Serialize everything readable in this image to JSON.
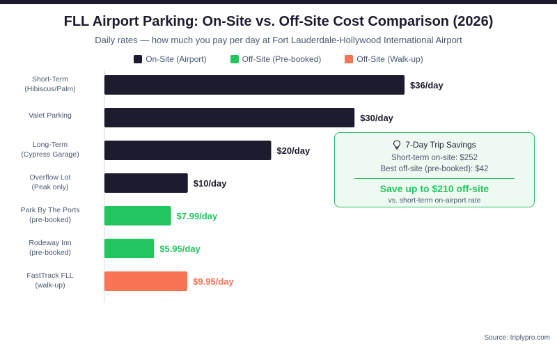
{
  "chart_data": {
    "type": "bar",
    "orientation": "horizontal",
    "title": "FLL Airport Parking: On-Site vs. Off-Site Cost Comparison (2026)",
    "subtitle": "Daily rates — how much you pay per day at Fort Lauderdale-Hollywood International Airport",
    "legend": [
      {
        "name": "On-Site (Airport)",
        "color": "#1c1c2e"
      },
      {
        "name": "Off-Site (Pre-booked)",
        "color": "#22c55e"
      },
      {
        "name": "Off-Site (Walk-up)",
        "color": "#f97355"
      }
    ],
    "xlim": [
      0,
      38
    ],
    "bars": [
      {
        "label": [
          "Short-Term",
          "(Hibiscus/Palm)"
        ],
        "value": 36,
        "value_label": "$36/day",
        "series": 0
      },
      {
        "label": [
          "Valet Parking"
        ],
        "value": 30,
        "value_label": "$30/day",
        "series": 0
      },
      {
        "label": [
          "Long-Term",
          "(Cypress Garage)"
        ],
        "value": 20,
        "value_label": "$20/day",
        "series": 0
      },
      {
        "label": [
          "Overflow Lot",
          "(Peak only)"
        ],
        "value": 10,
        "value_label": "$10/day",
        "series": 0
      },
      {
        "label": [
          "Park By The Ports",
          "(pre-booked)"
        ],
        "value": 7.99,
        "value_label": "$7.99/day",
        "series": 1
      },
      {
        "label": [
          "Rodeway Inn",
          "(pre-booked)"
        ],
        "value": 5.95,
        "value_label": "$5.95/day",
        "series": 1
      },
      {
        "label": [
          "FastTrack FLL",
          "(walk-up)"
        ],
        "value": 9.95,
        "value_label": "$9.95/day",
        "series": 2
      }
    ]
  },
  "savings": {
    "icon": "lightbulb-icon",
    "heading": "7-Day Trip Savings",
    "line1": "Short-term on-site: $252",
    "line2": "Best off-site (pre-booked): $42",
    "highlight": "Save up to $210 off-site",
    "note": "vs. short-term on-airport rate"
  },
  "source": "Source: triplypro.com"
}
